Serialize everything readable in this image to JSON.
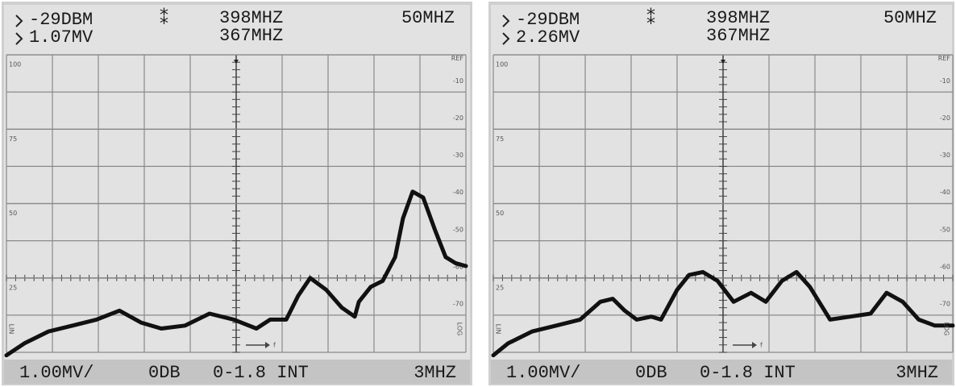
{
  "chart_data": [
    {
      "type": "line",
      "marker_level": "-29DBM",
      "marker_amplitude": "1.07MV",
      "marker_symbol": "⁑",
      "center_frequency": "398MHZ",
      "marker_frequency": "367MHZ",
      "span": "50MHZ",
      "scale": "1.00MV/",
      "attenuation": "0DB",
      "filter": "0-1.8 INT",
      "resolution_bandwidth": "3MHZ",
      "left_axis_label": "LIN",
      "right_axis_label": "LOG",
      "x_axis_label": "f",
      "color": "#111111",
      "x": [
        0,
        0.39,
        0.91,
        1.44,
        1.96,
        2.46,
        2.93,
        3.37,
        3.89,
        4.42,
        4.95,
        5.44,
        5.74,
        6.09,
        6.35,
        6.61,
        6.96,
        7.3,
        7.58,
        7.67,
        7.93,
        8.19,
        8.46,
        8.63,
        8.84,
        9.07,
        9.33,
        9.56,
        9.77,
        10
      ],
      "values": [
        -1,
        3,
        7,
        9,
        11,
        14,
        10,
        8,
        9,
        13,
        11,
        8,
        11,
        11,
        19,
        25,
        21,
        15,
        12,
        17,
        22,
        24,
        32,
        45,
        54,
        52,
        41,
        32,
        30,
        29
      ],
      "xlim": [
        0,
        10
      ],
      "ylim": [
        0,
        100
      ],
      "yticks": [
        25,
        50,
        75,
        100
      ],
      "y2lim": [
        -83,
        -3
      ],
      "y2ticks": [
        {
          "value": -4,
          "label": "REF"
        },
        -10,
        -20,
        -30,
        -40,
        -50,
        -60,
        -70
      ],
      "grid": true
    },
    {
      "type": "line",
      "marker_level": "-29DBM",
      "marker_amplitude": "2.26MV",
      "marker_symbol": "⁑",
      "center_frequency": "398MHZ",
      "marker_frequency": "367MHZ",
      "span": "50MHZ",
      "scale": "1.00MV/",
      "attenuation": "0DB",
      "filter": "0-1.8 INT",
      "resolution_bandwidth": "3MHZ",
      "left_axis_label": "LIN",
      "right_axis_label": "LOG",
      "x_axis_label": "f",
      "color": "#111111",
      "x": [
        0,
        0.32,
        0.84,
        1.37,
        1.89,
        2.33,
        2.6,
        2.86,
        3.12,
        3.44,
        3.65,
        4,
        4.26,
        4.56,
        4.88,
        5.23,
        5.61,
        5.93,
        6.28,
        6.6,
        6.89,
        7.33,
        7.77,
        8.21,
        8.56,
        8.91,
        9.26,
        9.61,
        10
      ],
      "values": [
        -1,
        3,
        7,
        9,
        11,
        17,
        18,
        14,
        11,
        12,
        11,
        21,
        26,
        27,
        24,
        17,
        20,
        17,
        24,
        27,
        22,
        11,
        12,
        13,
        20,
        17,
        11,
        9,
        9
      ],
      "xlim": [
        0,
        10
      ],
      "ylim": [
        0,
        100
      ],
      "yticks": [
        25,
        50,
        75,
        100
      ],
      "y2lim": [
        -83,
        -3
      ],
      "y2ticks": [
        {
          "value": -4,
          "label": "REF"
        },
        -10,
        -20,
        -30,
        -40,
        -50,
        -60,
        -70
      ],
      "grid": true
    }
  ]
}
